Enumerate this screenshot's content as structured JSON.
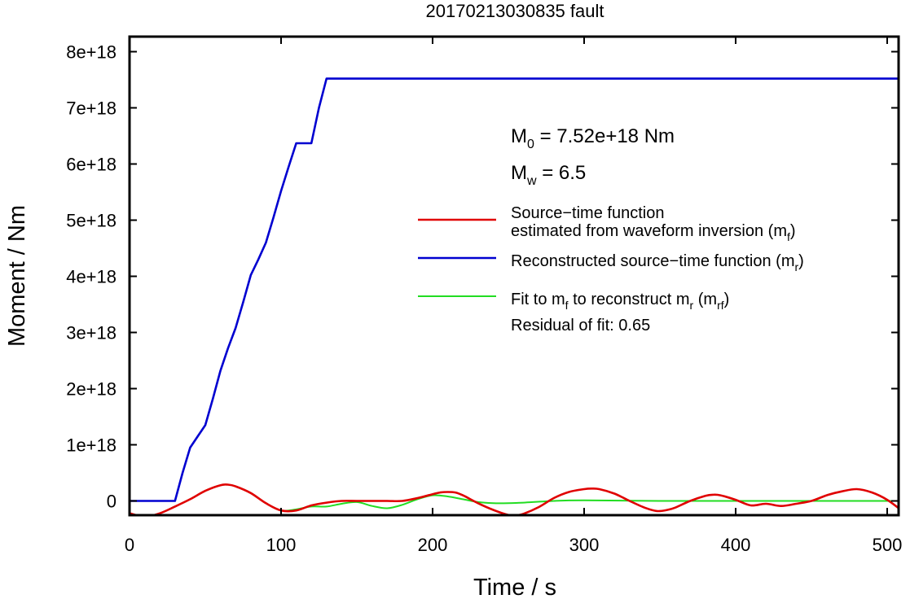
{
  "chart_data": {
    "type": "line",
    "title": "20170213030835 fault",
    "xlabel": "Time / s",
    "ylabel": "Moment / Nm",
    "xlim": [
      0,
      510
    ],
    "ylim": [
      -3.5e+17,
      8.3e+18
    ],
    "xticks": [
      0,
      100,
      200,
      300,
      400,
      500
    ],
    "xtick_labels": [
      "0",
      "100",
      "200",
      "300",
      "400",
      "500"
    ],
    "yticks": [
      0,
      1e+18,
      2e+18,
      3e+18,
      4e+18,
      5e+18,
      6e+18,
      7e+18,
      8e+18
    ],
    "ytick_labels": [
      "0",
      "1e+18",
      "2e+18",
      "3e+18",
      "4e+18",
      "5e+18",
      "6e+18",
      "7e+18",
      "8e+18"
    ],
    "grid": false,
    "legend_position": "right",
    "annotations": {
      "m0": {
        "symbol": "M",
        "sub": "0",
        "text": " = 7.52e+18 Nm"
      },
      "mw": {
        "symbol": "M",
        "sub": "w",
        "text": " = 6.5"
      },
      "residual": "Residual of fit: 0.65"
    },
    "series": [
      {
        "key": "mf",
        "color": "#e00000",
        "legend_lines": [
          {
            "parts": [
              {
                "t": "Source−time function"
              }
            ]
          },
          {
            "parts": [
              {
                "t": "estimated from waveform inversion (m"
              },
              {
                "sub": "f"
              },
              {
                "t": ")"
              }
            ]
          }
        ],
        "x": [
          0,
          10,
          20,
          30,
          40,
          50,
          60,
          65,
          70,
          80,
          90,
          100,
          110,
          120,
          130,
          140,
          150,
          160,
          170,
          180,
          190,
          200,
          205,
          210,
          215,
          220,
          230,
          240,
          250,
          255,
          260,
          270,
          280,
          290,
          300,
          305,
          310,
          320,
          330,
          340,
          348,
          355,
          360,
          370,
          380,
          385,
          390,
          400,
          410,
          420,
          430,
          440,
          450,
          460,
          470,
          480,
          490,
          500,
          510
        ],
        "y": [
          -2.2e+17,
          -2.8e+17,
          -2.2e+17,
          -1e+17,
          3e+16,
          1.8e+17,
          2.8e+17,
          2.9e+17,
          2.6e+17,
          1.4e+17,
          -4e+16,
          -1.7e+17,
          -1.7e+17,
          -8e+16,
          -3e+16,
          0,
          0,
          0,
          0,
          0,
          5e+16,
          1.2e+17,
          1.5e+17,
          1.6e+17,
          1.5e+17,
          1e+17,
          -4e+16,
          -1.6e+17,
          -2.5e+17,
          -2.6e+17,
          -2.3e+17,
          -1.1e+17,
          5e+16,
          1.6e+17,
          2.1e+17,
          2.2e+17,
          2.1e+17,
          1.3e+17,
          0,
          -1.2e+17,
          -1.8e+17,
          -1.6e+17,
          -1.2e+17,
          0,
          9e+16,
          1.1e+17,
          1e+17,
          2e+16,
          -8e+16,
          -5e+16,
          -9e+16,
          -5e+16,
          0,
          1e+17,
          1.7e+17,
          2.1e+17,
          1.5e+17,
          2e+16,
          -1.8e+17
        ]
      },
      {
        "key": "mr",
        "color": "#0000d0",
        "legend_lines": [
          {
            "parts": [
              {
                "t": "Reconstructed source−time function (m"
              },
              {
                "sub": "r"
              },
              {
                "t": ")"
              }
            ]
          }
        ],
        "x": [
          0,
          30,
          35,
          40,
          45,
          50,
          55,
          60,
          65,
          70,
          75,
          80,
          85,
          90,
          95,
          100,
          105,
          110,
          115,
          120,
          125,
          130,
          510
        ],
        "y": [
          0,
          0,
          5e+17,
          9.5e+17,
          1.15e+18,
          1.35e+18,
          1.82e+18,
          2.32e+18,
          2.72e+18,
          3.08e+18,
          3.54e+18,
          4.02e+18,
          4.3e+18,
          4.6e+18,
          5.05e+18,
          5.52e+18,
          5.95e+18,
          6.37e+18,
          6.37e+18,
          6.37e+18,
          7e+18,
          7.52e+18,
          7.52e+18
        ]
      },
      {
        "key": "mrf",
        "color": "#22dd22",
        "legend_lines": [
          {
            "parts": [
              {
                "t": "Fit to m"
              },
              {
                "sub": "f"
              },
              {
                "t": " to reconstruct m"
              },
              {
                "sub": "r"
              },
              {
                "t": " (m"
              },
              {
                "sub": "rf"
              },
              {
                "t": ")"
              }
            ]
          }
        ],
        "x": [
          0,
          10,
          20,
          30,
          40,
          50,
          60,
          65,
          70,
          80,
          90,
          100,
          110,
          120,
          130,
          140,
          150,
          160,
          170,
          180,
          190,
          200,
          210,
          220,
          230,
          240,
          250,
          260,
          280,
          300,
          350,
          400,
          450,
          510
        ],
        "y": [
          -2.2e+17,
          -2.8e+17,
          -2.2e+17,
          -1e+17,
          3e+16,
          1.8e+17,
          2.8e+17,
          2.9e+17,
          2.6e+17,
          1.4e+17,
          -4e+16,
          -1.7e+17,
          -1.5e+17,
          -1e+17,
          -1e+17,
          -5e+16,
          -2e+16,
          -9e+16,
          -1.3e+17,
          -7e+16,
          3e+16,
          1e+17,
          8e+16,
          3e+16,
          -2e+16,
          -4e+16,
          -4e+16,
          -3e+16,
          0,
          1e+16,
          0,
          0,
          0,
          0
        ]
      }
    ]
  }
}
